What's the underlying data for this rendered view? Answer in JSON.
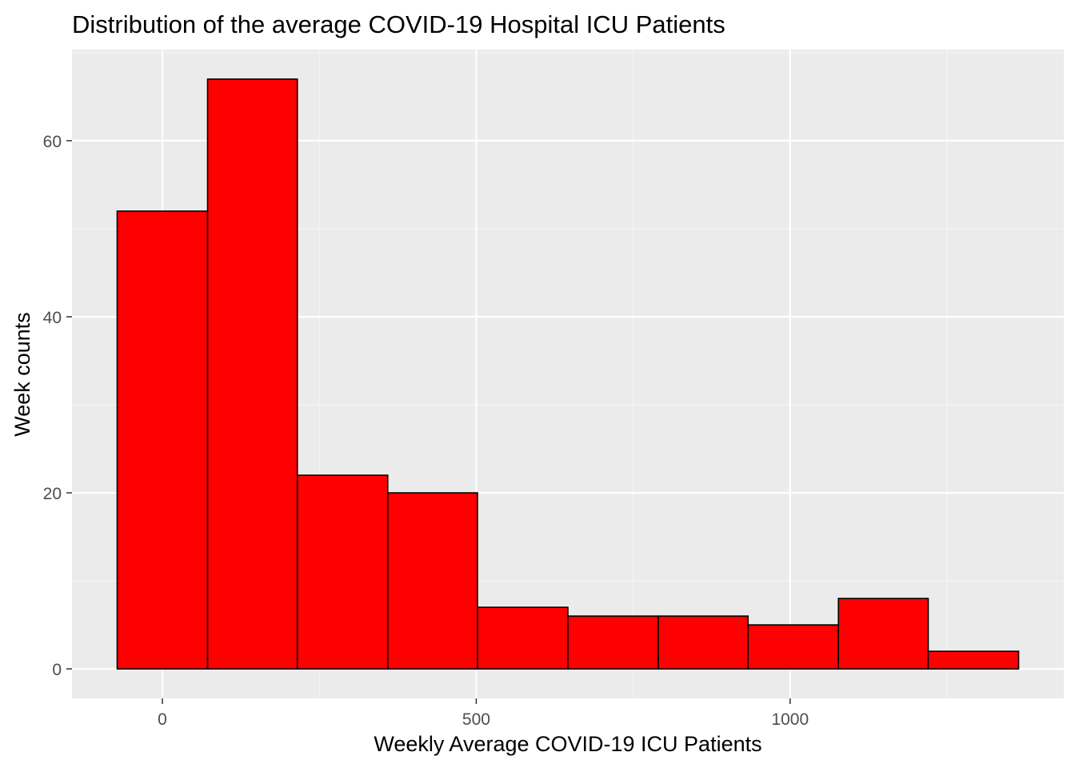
{
  "chart_data": {
    "type": "bar",
    "title": "Distribution of the average COVID-19 Hospital ICU Patients",
    "xlabel": "Weekly Average COVID-19 ICU Patients",
    "ylabel": "Week counts",
    "bins": [
      {
        "x0": -72,
        "x1": 72,
        "count": 52
      },
      {
        "x0": 72,
        "x1": 215,
        "count": 67
      },
      {
        "x0": 215,
        "x1": 359,
        "count": 22
      },
      {
        "x0": 359,
        "x1": 502,
        "count": 20
      },
      {
        "x0": 502,
        "x1": 646,
        "count": 7
      },
      {
        "x0": 646,
        "x1": 790,
        "count": 6
      },
      {
        "x0": 790,
        "x1": 933,
        "count": 6
      },
      {
        "x0": 933,
        "x1": 1077,
        "count": 5
      },
      {
        "x0": 1077,
        "x1": 1220,
        "count": 8
      },
      {
        "x0": 1220,
        "x1": 1364,
        "count": 2
      }
    ],
    "xlim": [
      -144,
      1436
    ],
    "ylim": [
      -3.35,
      70.35
    ],
    "x_ticks": [
      0,
      500,
      1000
    ],
    "x_tick_labels": [
      "0",
      "500",
      "1000"
    ],
    "y_ticks": [
      0,
      20,
      40,
      60
    ],
    "y_tick_labels": [
      "0",
      "20",
      "40",
      "60"
    ],
    "grid": true,
    "legend": "none",
    "colors": {
      "bar_fill": "#ff0000",
      "bar_stroke": "#000000",
      "panel_background": "#ebebeb",
      "grid_major": "#ffffff",
      "grid_minor": "#f5f5f5",
      "tick_text": "#4d4d4d"
    }
  }
}
